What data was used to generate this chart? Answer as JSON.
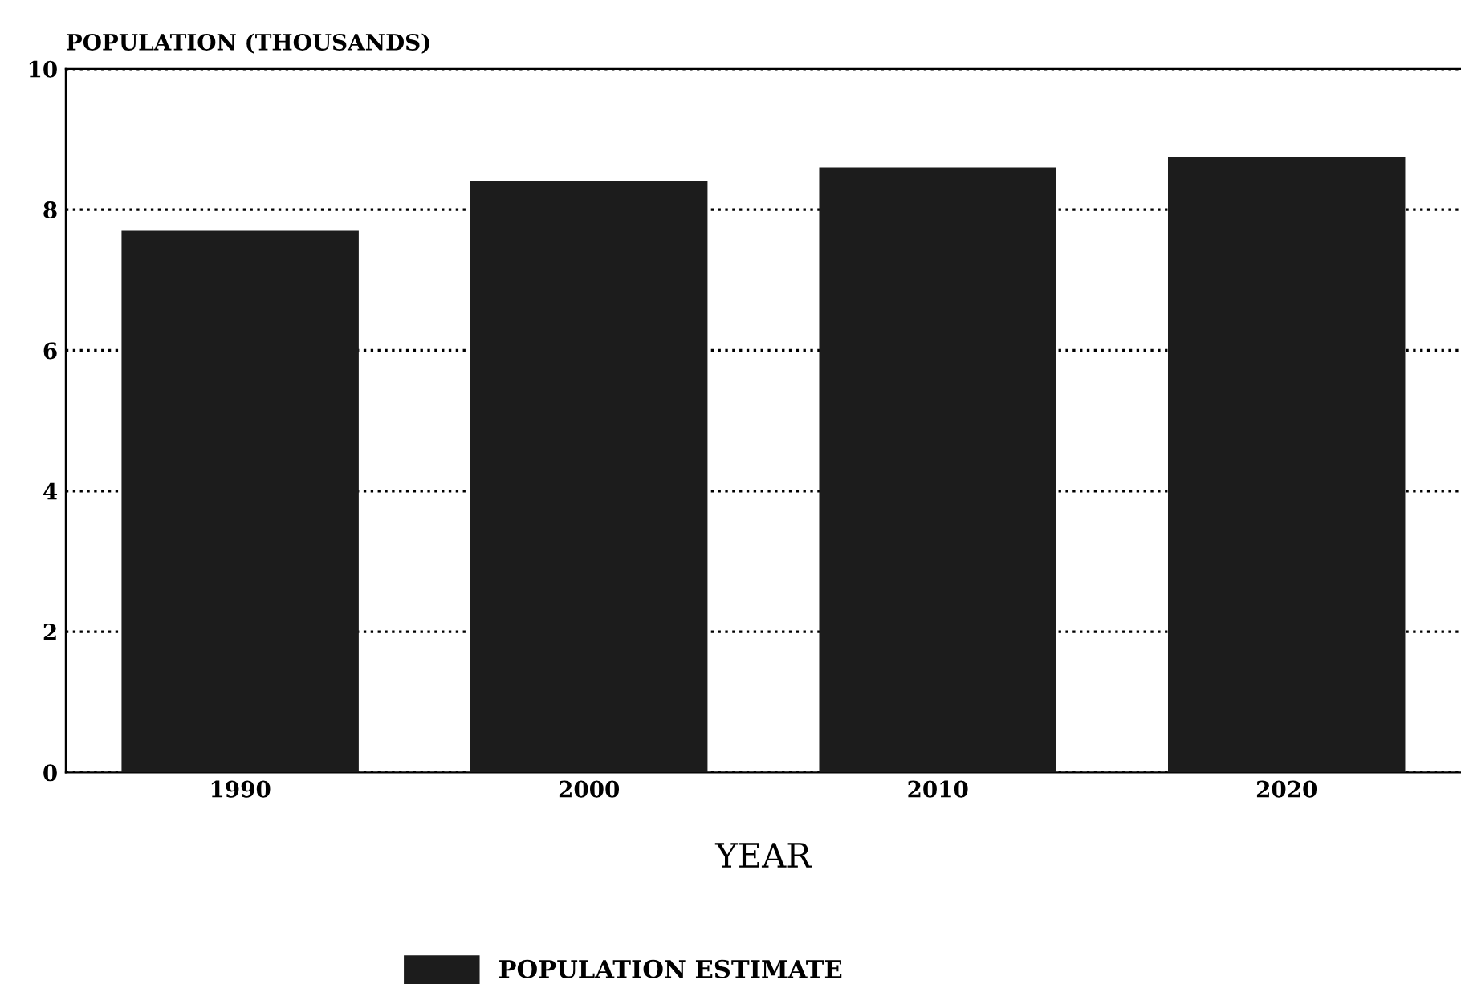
{
  "chart_data": {
    "type": "bar",
    "ylabel": "POPULATION (THOUSANDS)",
    "xlabel": "YEAR",
    "categories": [
      "1990",
      "2000",
      "2010",
      "2020"
    ],
    "series": [
      {
        "name": "POPULATION ESTIMATE",
        "color": "#1c1c1c",
        "values": [
          7.7,
          8.4,
          8.6,
          8.75
        ]
      }
    ],
    "ylim": [
      0,
      10
    ],
    "yticks": [
      0,
      2,
      4,
      6,
      8,
      10
    ],
    "grid": "y",
    "line_style": "dotted",
    "legend": "bottom"
  }
}
